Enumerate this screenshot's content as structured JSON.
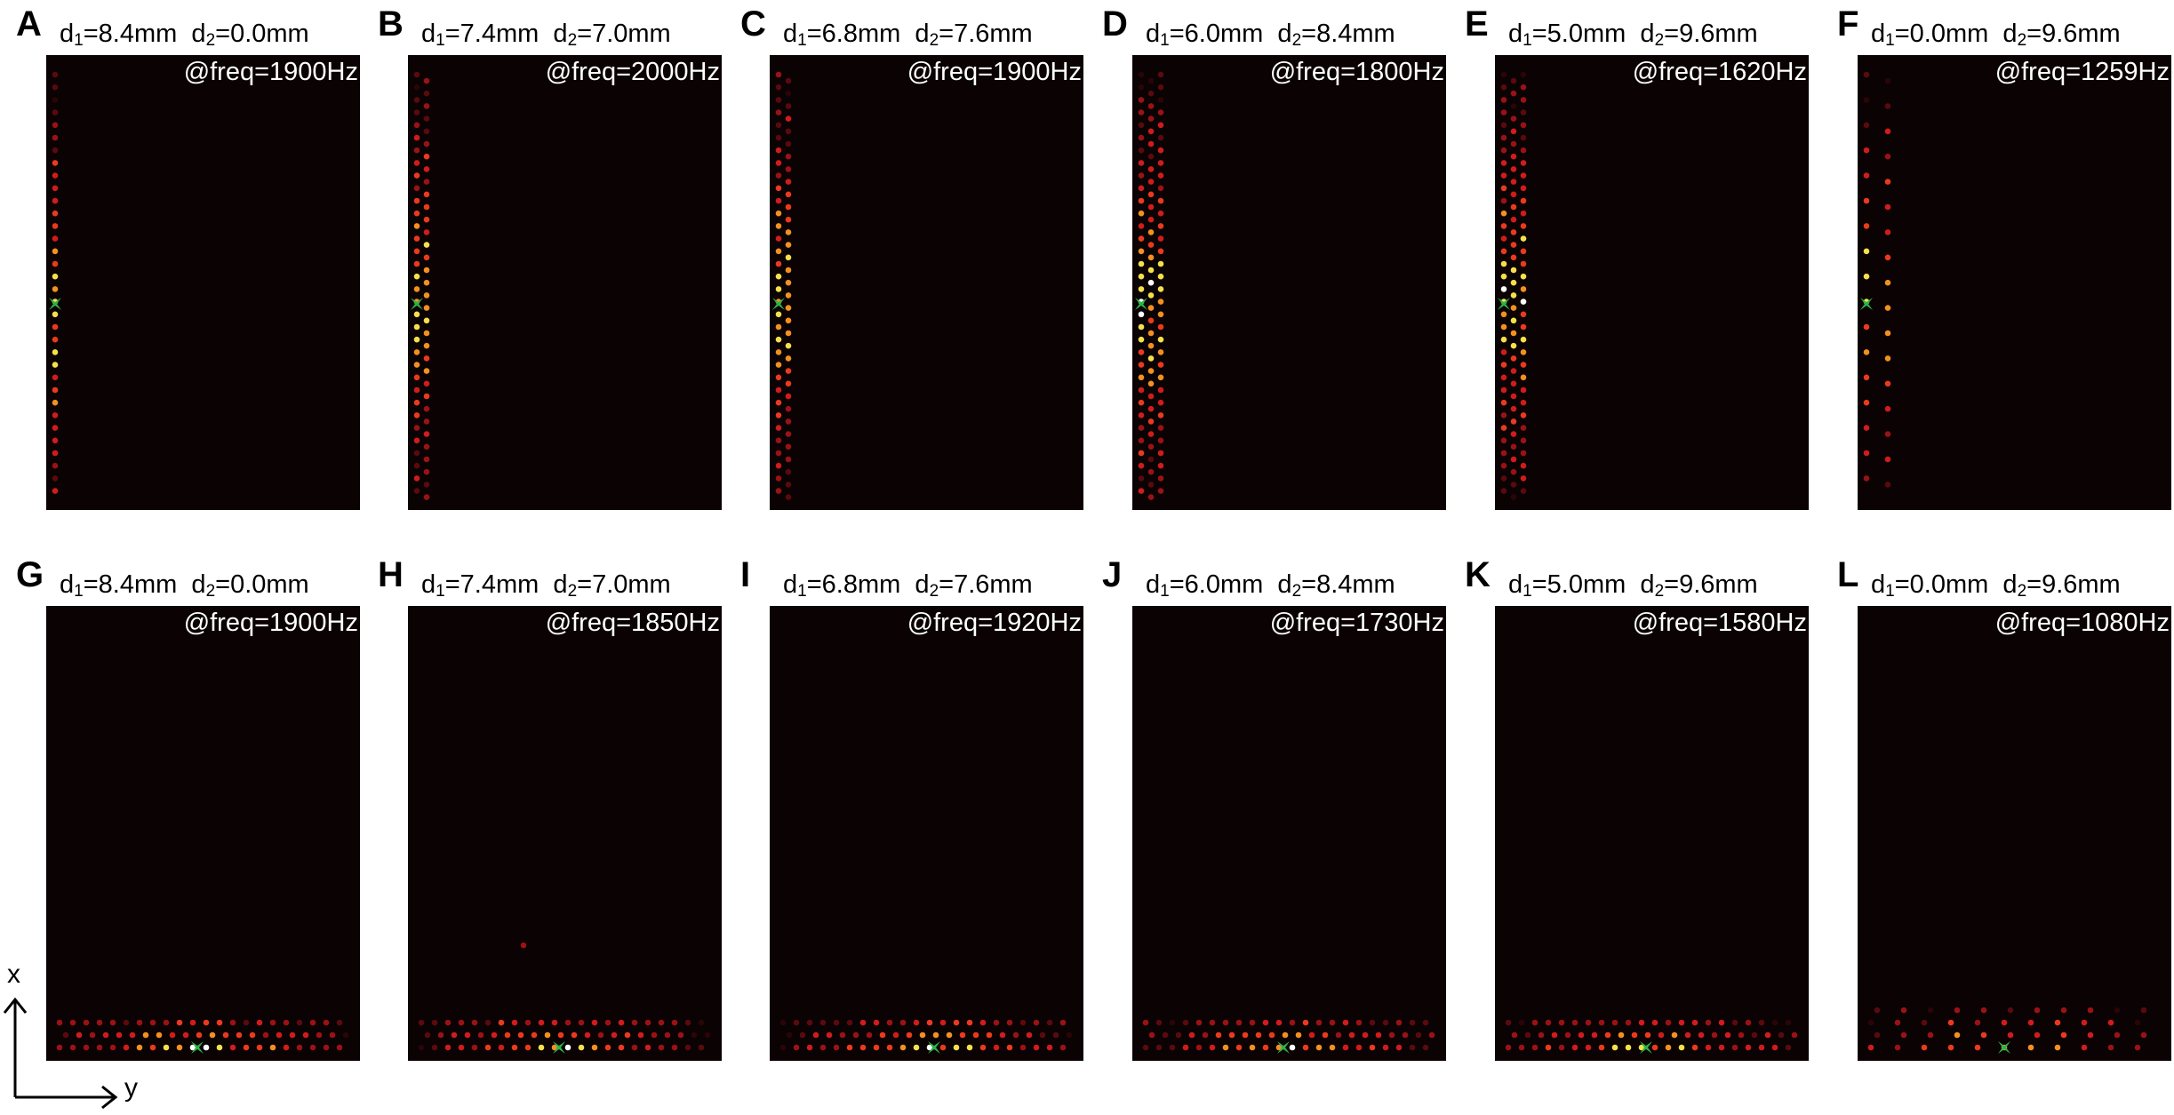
{
  "panels": [
    {
      "letter": "A",
      "d1": "=8.4mm",
      "d2": "=0.0mm",
      "freq": "@freq=1900Hz"
    },
    {
      "letter": "B",
      "d1": "=7.4mm",
      "d2": "=7.0mm",
      "freq": "@freq=2000Hz"
    },
    {
      "letter": "C",
      "d1": "=6.8mm",
      "d2": "=7.6mm",
      "freq": "@freq=1900Hz"
    },
    {
      "letter": "D",
      "d1": "=6.0mm",
      "d2": "=8.4mm",
      "freq": "@freq=1800Hz"
    },
    {
      "letter": "E",
      "d1": "=5.0mm",
      "d2": "=9.6mm",
      "freq": "@freq=1620Hz"
    },
    {
      "letter": "F",
      "d1": "=0.0mm",
      "d2": "=9.6mm",
      "freq": "@freq=1259Hz"
    },
    {
      "letter": "G",
      "d1": "=8.4mm",
      "d2": "=0.0mm",
      "freq": "@freq=1900Hz"
    },
    {
      "letter": "H",
      "d1": "=7.4mm",
      "d2": "=7.0mm",
      "freq": "@freq=1850Hz"
    },
    {
      "letter": "I",
      "d1": "=6.8mm",
      "d2": "=7.6mm",
      "freq": "@freq=1920Hz"
    },
    {
      "letter": "J",
      "d1": "=6.0mm",
      "d2": "=8.4mm",
      "freq": "@freq=1730Hz"
    },
    {
      "letter": "K",
      "d1": "=5.0mm",
      "d2": "=9.6mm",
      "freq": "@freq=1580Hz"
    },
    {
      "letter": "L",
      "d1": "=0.0mm",
      "d2": "=9.6mm",
      "freq": "@freq=1080Hz"
    }
  ],
  "params_prefix": {
    "d1": "d",
    "d1_sub": "1",
    "d2": "d",
    "d2_sub": "2"
  },
  "axes": {
    "x_label": "x",
    "y_label": "y"
  },
  "colors": {
    "panel_bg": "#0a0203",
    "source_marker": "#2db34a",
    "intensity": [
      "#2a0507",
      "#5a0a0e",
      "#9a1216",
      "#d01c1c",
      "#ea3a1e",
      "#f39020",
      "#f4e04a",
      "#ffffff"
    ]
  }
}
